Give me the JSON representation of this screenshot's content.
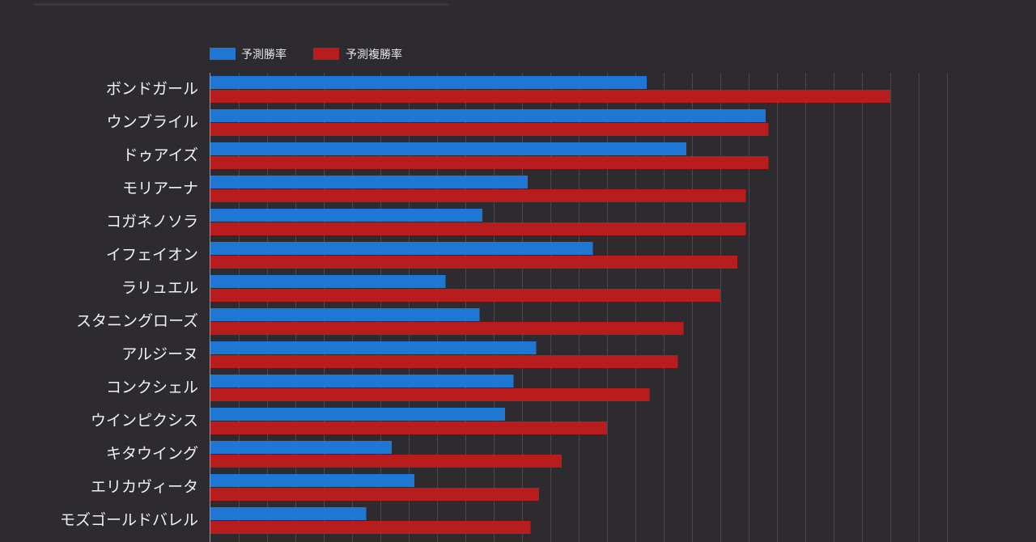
{
  "chart_data": {
    "type": "bar",
    "orientation": "horizontal",
    "title": "",
    "xlabel": "",
    "ylabel": "",
    "legend_position": "top-left",
    "grid": true,
    "xlim": [
      0,
      26
    ],
    "categories": [
      "ボンドガール",
      "ウンブライル",
      "ドゥアイズ",
      "モリアーナ",
      "コガネノソラ",
      "イフェイオン",
      "ラリュエル",
      "スタニングローズ",
      "アルジーヌ",
      "コンクシェル",
      "ウインピクシス",
      "キタウイング",
      "エリカヴィータ",
      "モズゴールドバレル"
    ],
    "series": [
      {
        "name": "予測勝率",
        "color": "#1f77d4",
        "values": [
          15.4,
          19.6,
          16.8,
          11.2,
          9.6,
          13.5,
          8.3,
          9.5,
          11.5,
          10.7,
          10.4,
          6.4,
          7.2,
          5.5
        ]
      },
      {
        "name": "予測複勝率",
        "color": "#b81c1c",
        "values": [
          24.0,
          19.7,
          19.7,
          18.9,
          18.9,
          18.6,
          18.0,
          16.7,
          16.5,
          15.5,
          14.0,
          12.4,
          11.6,
          11.3
        ]
      }
    ]
  }
}
